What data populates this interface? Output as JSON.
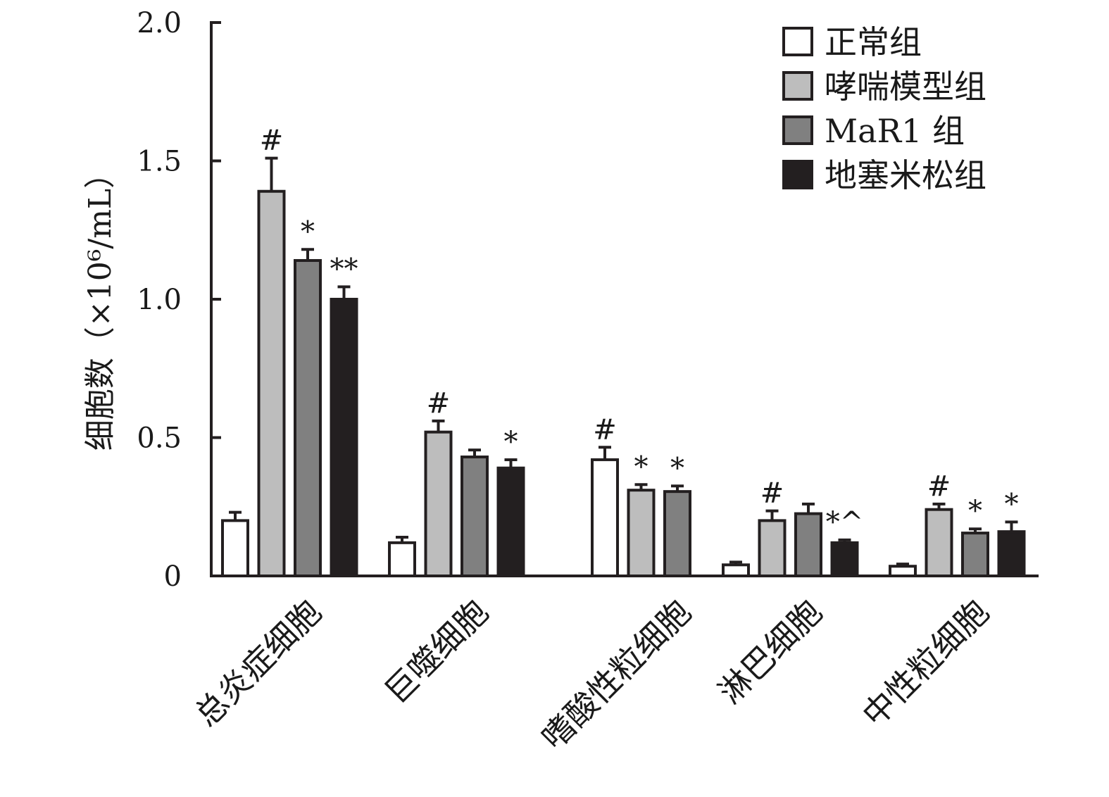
{
  "chart_data": {
    "type": "bar",
    "title": "",
    "xlabel": "",
    "ylabel": "细胞数（×10⁶/mL）",
    "ylim": [
      0,
      2.0
    ],
    "yticks": [
      0,
      0.5,
      1.0,
      1.5,
      2.0
    ],
    "ytick_labels": [
      "0",
      "0.5",
      "1.0",
      "1.5",
      "2.0"
    ],
    "grid": false,
    "legend_position": "top-right",
    "categories": [
      "总炎症细胞",
      "巨噬细胞",
      "嗜酸性粒细胞",
      "淋巴细胞",
      "中性粒细胞"
    ],
    "series": [
      {
        "name": "正常组",
        "color": "#ffffff",
        "values": [
          0.2,
          0.12,
          0.42,
          0.04,
          0.035
        ],
        "errors": [
          0.03,
          0.02,
          0.045,
          0.01,
          0.008
        ],
        "annotations": [
          "",
          "",
          "#",
          "",
          ""
        ]
      },
      {
        "name": "哮喘模型组",
        "color": "#bdbdbd",
        "values": [
          1.39,
          0.52,
          0.31,
          0.2,
          0.24
        ],
        "errors": [
          0.12,
          0.04,
          0.02,
          0.035,
          0.02
        ],
        "annotations": [
          "#",
          "#",
          "*",
          "#",
          "#"
        ]
      },
      {
        "name": "MaR1 组",
        "color": "#808080",
        "values": [
          1.14,
          0.43,
          0.305,
          0.225,
          0.155
        ],
        "errors": [
          0.04,
          0.025,
          0.02,
          0.035,
          0.015
        ],
        "annotations": [
          "*",
          "",
          "*",
          "",
          "*"
        ]
      },
      {
        "name": "地塞米松组",
        "color": "#231f20",
        "values": [
          1.0,
          0.39,
          null,
          0.12,
          0.16
        ],
        "errors": [
          0.045,
          0.03,
          null,
          0.01,
          0.035
        ],
        "annotations": [
          "**",
          "*",
          "",
          "*^",
          "*"
        ]
      }
    ]
  }
}
